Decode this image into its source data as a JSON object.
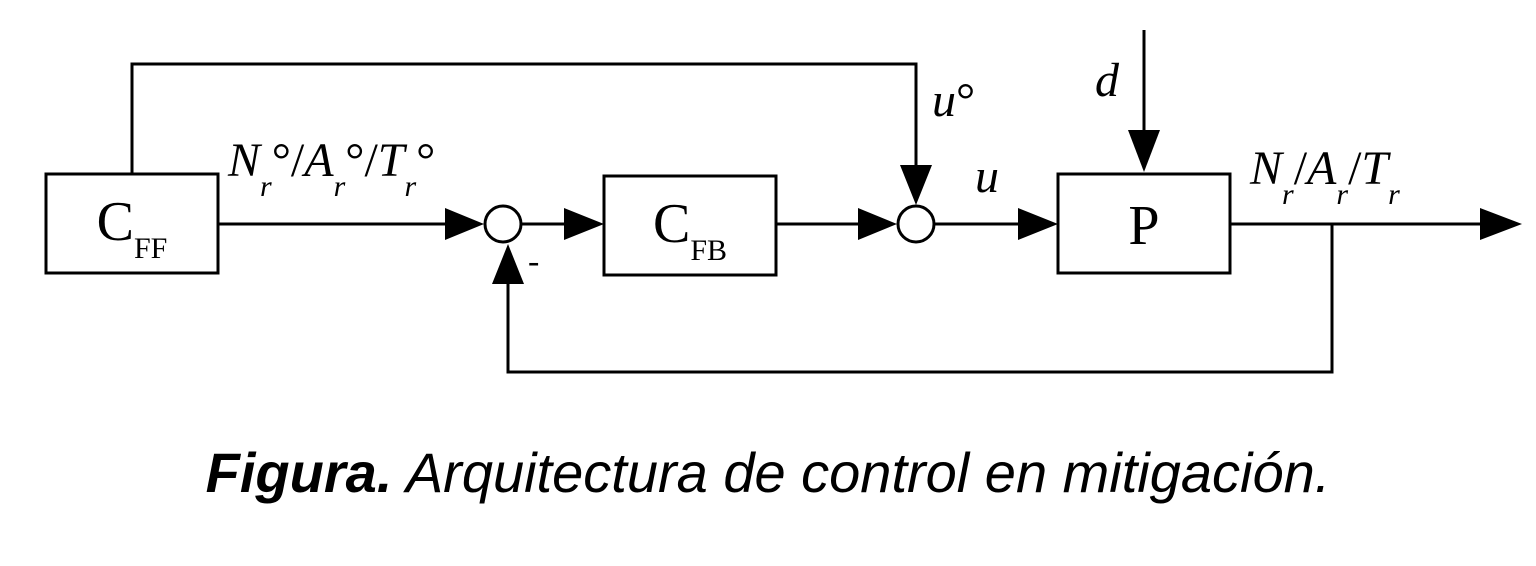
{
  "blocks": {
    "cff": {
      "main": "C",
      "sub": "FF"
    },
    "cfb": {
      "main": "C",
      "sub": "FB"
    },
    "plant": {
      "label": "P"
    }
  },
  "signals": {
    "reference": {
      "parts": [
        "N",
        "r",
        "°/",
        "A",
        "r",
        "°/",
        "T",
        "r",
        "°"
      ]
    },
    "feedforward": {
      "var": "u",
      "mark": "°"
    },
    "control": {
      "var": "u"
    },
    "disturbance": {
      "var": "d"
    },
    "output": {
      "parts": [
        "N",
        "r",
        "/",
        "A",
        "r",
        "/",
        "T",
        "r"
      ]
    },
    "minus_sign": "-"
  },
  "caption": {
    "label": "Figura.",
    "text": " Arquitectura de control en mitigación."
  }
}
